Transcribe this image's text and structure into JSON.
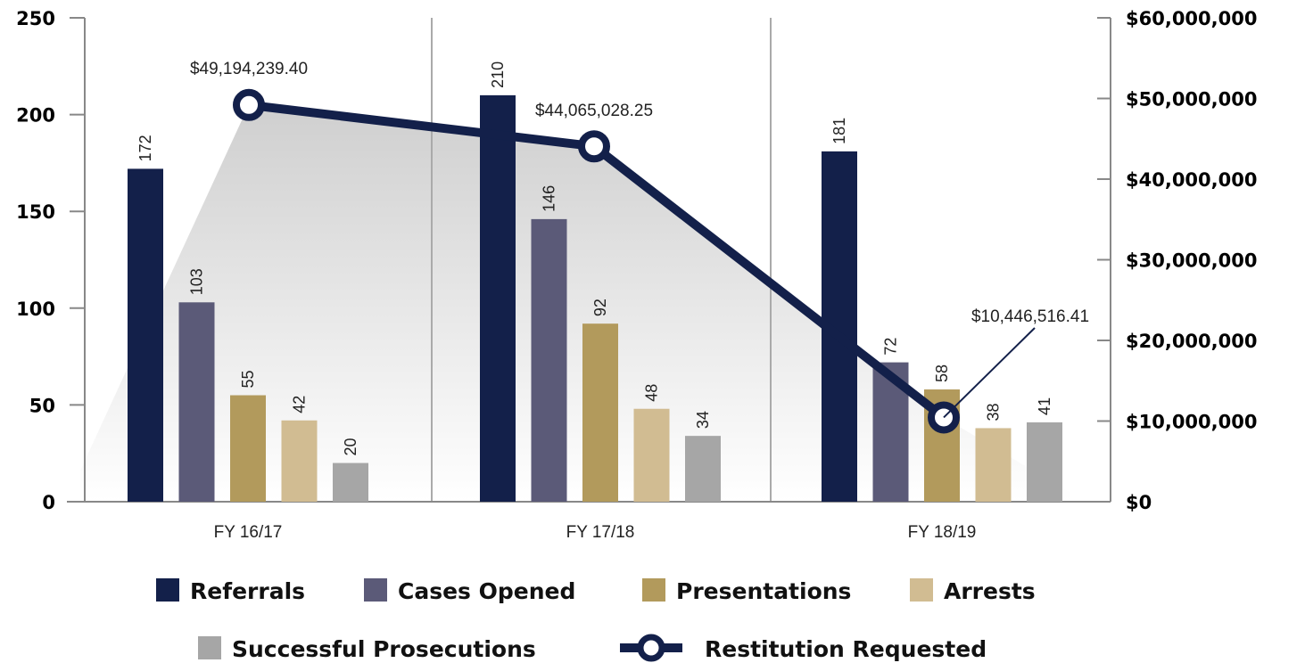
{
  "chart_data": {
    "type": "bar",
    "categories": [
      "FY 16/17",
      "FY 17/18",
      "FY 18/19"
    ],
    "series": [
      {
        "name": "Referrals",
        "values": [
          172,
          210,
          181
        ],
        "color": "#13204a"
      },
      {
        "name": "Cases Opened",
        "values": [
          103,
          146,
          72
        ],
        "color": "#5b5a78"
      },
      {
        "name": "Presentations",
        "values": [
          55,
          92,
          58
        ],
        "color": "#b29a5c"
      },
      {
        "name": "Arrests",
        "values": [
          42,
          48,
          38
        ],
        "color": "#d1bc92"
      },
      {
        "name": "Successful Prosecutions",
        "values": [
          20,
          34,
          41
        ],
        "color": "#a6a6a6"
      }
    ],
    "line_series": {
      "name": "Restitution Requested",
      "values": [
        49194239.4,
        44065028.25,
        10446516.41
      ],
      "labels": [
        "$49,194,239.40",
        "$44,065,028.25",
        "$10,446,516.41"
      ],
      "color": "#13204a"
    },
    "ylim": [
      0,
      250
    ],
    "y_ticks": [
      "0",
      "50",
      "100",
      "150",
      "200",
      "250"
    ],
    "y2lim": [
      0,
      60000000
    ],
    "y2_ticks": [
      "$0",
      "$10,000,000",
      "$20,000,000",
      "$30,000,000",
      "$40,000,000",
      "$50,000,000",
      "$60,000,000"
    ],
    "legend_position": "bottom",
    "grid": false
  }
}
